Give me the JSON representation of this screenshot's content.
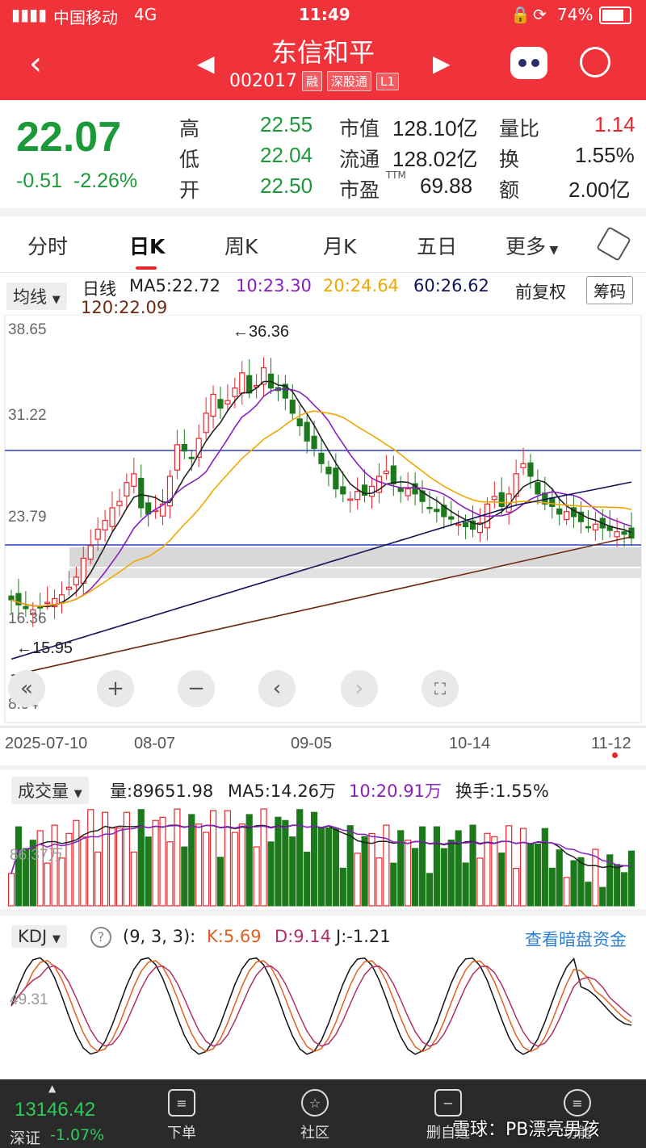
{
  "status_bar": {
    "carrier": "中国移动",
    "network": "4G",
    "time": "11:49",
    "battery": "74%"
  },
  "header": {
    "name": "东信和平",
    "code": "002017",
    "tags": [
      "融",
      "深股通",
      "L1"
    ]
  },
  "quote": {
    "price": "22.07",
    "change": "-0.51",
    "change_pct": "-2.26%",
    "high_label": "高",
    "high": "22.55",
    "low_label": "低",
    "low": "22.04",
    "open_label": "开",
    "open": "22.50",
    "mktcap_label": "市值",
    "mktcap": "128.10亿",
    "float_label": "流通",
    "float": "128.02亿",
    "pe_label": "市盈",
    "pe_sup": "TTM",
    "pe": "69.88",
    "volratio_label": "量比",
    "volratio": "1.14",
    "turnover_label": "换",
    "turnover": "1.55%",
    "amount_label": "额",
    "amount": "2.00亿"
  },
  "tabs": [
    "分时",
    "日K",
    "周K",
    "月K",
    "五日",
    "更多"
  ],
  "ma_row": {
    "dropdown": "均线",
    "period": "日线",
    "ma5": "MA5:22.72",
    "ma10": "10:23.30",
    "ma20": "20:24.64",
    "ma60": "60:26.62",
    "ma120": "120:22.09",
    "adjust": "前复权",
    "chips": "筹码"
  },
  "price_axis": {
    "p1": "38.65",
    "p2": "31.22",
    "p3": "23.79",
    "p4": "16.36",
    "p5": "8.94"
  },
  "annotations": {
    "high": "←36.36",
    "low": "←15.95"
  },
  "dates": [
    "2025-07-10",
    "08-07",
    "09-05",
    "10-14",
    "11-12"
  ],
  "volume_row": {
    "dropdown": "成交量",
    "vol": "量:89651.98",
    "ma5": "MA5:14.26万",
    "ma10": "10:20.91万",
    "turnover": "换手:1.55%",
    "axis": "86.37万"
  },
  "kdj_row": {
    "dropdown": "KDJ",
    "params": "(9, 3, 3):",
    "k": "K:5.69",
    "d": "D:9.14",
    "j": "J:-1.21",
    "link": "查看暗盘资金",
    "axis": "49.31"
  },
  "bottom": {
    "index_value": "13146.42",
    "index_name": "深证",
    "index_change": "-1.07%",
    "nav": [
      "下单",
      "社区",
      "删自选",
      "功能"
    ],
    "watermark": "雪球：PB漂亮男孩"
  },
  "colors": {
    "up": "#e8262c",
    "down": "#1c7a1c",
    "header": "#f0333a",
    "ma5": "#222222",
    "ma10": "#8a1fc1",
    "ma20": "#f0a800",
    "ma60": "#14145a",
    "ma120": "#6b2a10"
  },
  "chart_data": {
    "type": "candlestick",
    "x": [
      "2025-07-10",
      "08-07",
      "09-05",
      "10-14",
      "11-12"
    ],
    "ylim": [
      8.94,
      38.65
    ],
    "markers": {
      "max": 36.36,
      "min": 15.95
    },
    "last": {
      "open": 22.5,
      "high": 22.55,
      "low": 22.04,
      "close": 22.07
    },
    "ma": {
      "MA5": 22.72,
      "MA10": 23.3,
      "MA20": 24.64,
      "MA60": 26.62,
      "MA120": 22.09
    }
  }
}
